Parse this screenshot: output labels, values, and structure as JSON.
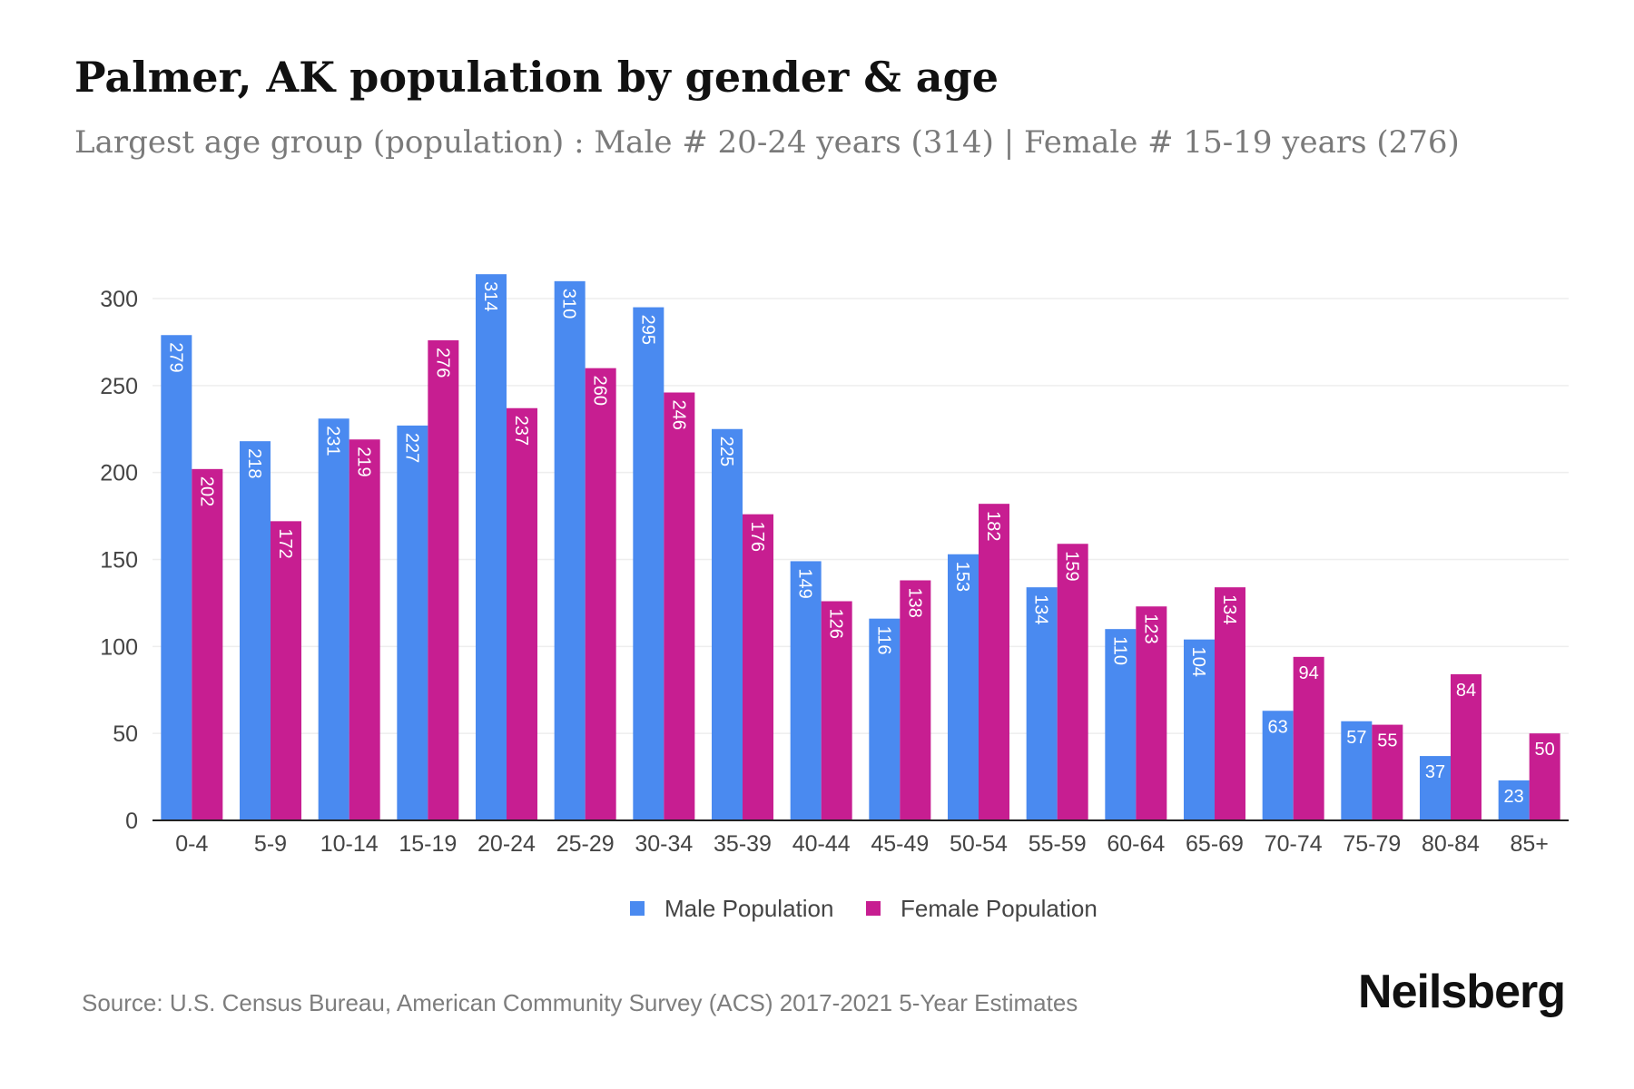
{
  "title": "Palmer, AK population by gender & age",
  "subtitle": "Largest age group (population) : Male # 20-24 years (314) | Female # 15-19 years (276)",
  "source": "Source: U.S. Census Bureau, American Community Survey (ACS) 2017-2021 5-Year Estimates",
  "brand": "Neilsberg",
  "colors": {
    "male": "#4a8af0",
    "female": "#c71e91",
    "grid": "#eeeeee",
    "axis": "#222222",
    "tick_text": "#444444"
  },
  "chart_data": {
    "type": "bar",
    "categories": [
      "0-4",
      "5-9",
      "10-14",
      "15-19",
      "20-24",
      "25-29",
      "30-34",
      "35-39",
      "40-44",
      "45-49",
      "50-54",
      "55-59",
      "60-64",
      "65-69",
      "70-74",
      "75-79",
      "80-84",
      "85+"
    ],
    "series": [
      {
        "name": "Male Population",
        "color": "#4a8af0",
        "values": [
          279,
          218,
          231,
          227,
          314,
          310,
          295,
          225,
          149,
          116,
          153,
          134,
          110,
          104,
          63,
          57,
          37,
          23
        ]
      },
      {
        "name": "Female Population",
        "color": "#c71e91",
        "values": [
          202,
          172,
          219,
          276,
          237,
          260,
          246,
          176,
          126,
          138,
          182,
          159,
          123,
          134,
          94,
          55,
          84,
          50
        ]
      }
    ],
    "yticks": [
      0,
      50,
      100,
      150,
      200,
      250,
      300
    ],
    "ylim": [
      0,
      320
    ],
    "xlabel": "",
    "ylabel": "",
    "grid": true,
    "legend": "bottom-center"
  }
}
